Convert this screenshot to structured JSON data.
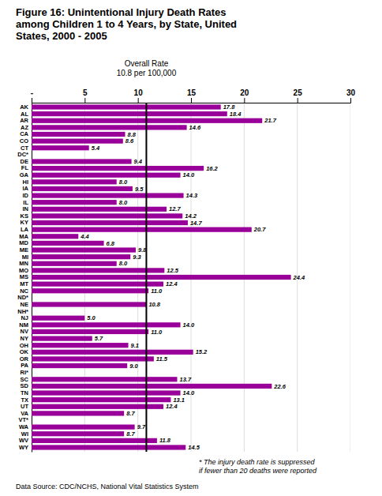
{
  "chart_data": {
    "type": "bar",
    "orientation": "horizontal",
    "title": "Figure 16: Unintentional Injury Death Rates\namong Children 1 to 4 Years, by State, United\nStates, 2000 - 2005",
    "categories": [
      "AK",
      "AL",
      "AR",
      "AZ",
      "CA",
      "CO",
      "CT",
      "DC*",
      "DE",
      "FL",
      "GA",
      "HI",
      "IA",
      "ID",
      "IL",
      "IN",
      "KS",
      "KY",
      "LA",
      "MA",
      "MD",
      "ME",
      "MI",
      "MN",
      "MO",
      "MS",
      "MT",
      "NC",
      "ND*",
      "NE",
      "NH*",
      "NJ",
      "NM",
      "NV",
      "NY",
      "OH",
      "OK",
      "OR",
      "PA",
      "RI*",
      "SC",
      "SD",
      "TN",
      "TX",
      "UT",
      "VA",
      "VT*",
      "WA",
      "WI",
      "WV",
      "WY"
    ],
    "values": [
      17.8,
      18.4,
      21.7,
      14.6,
      8.8,
      8.6,
      5.4,
      null,
      9.4,
      16.2,
      14.0,
      8.0,
      9.5,
      14.3,
      8.0,
      12.7,
      14.2,
      14.7,
      20.7,
      4.4,
      6.8,
      9.8,
      9.3,
      8.0,
      12.5,
      24.4,
      12.4,
      11.0,
      null,
      10.8,
      null,
      5.0,
      14.0,
      11.0,
      5.7,
      9.1,
      15.2,
      11.5,
      9.0,
      null,
      13.7,
      22.6,
      14.0,
      13.1,
      12.4,
      8.7,
      null,
      9.7,
      8.7,
      11.8,
      14.5
    ],
    "value_labels": [
      "17.8",
      "18.4",
      "21.7",
      "14.6",
      "8.8",
      "8.6",
      "5.4",
      null,
      "9.4",
      "16.2",
      "14.0",
      "8.0",
      "9.5",
      "14.3",
      "8.0",
      "12.7",
      "14.2",
      "14.7",
      "20.7",
      "4.4",
      "6.8",
      "9.8",
      "9.3",
      "8.0",
      "12.5",
      "24.4",
      "12.4",
      "11.0",
      null,
      "10.8",
      null,
      "5.0",
      "14.0",
      "11.0",
      "5.7",
      "9.1",
      "15.2",
      "11.5",
      "9.0",
      null,
      "13.7",
      "22.6",
      "14.0",
      "13.1",
      "12.4",
      "8.7",
      null,
      "9.7",
      "8.7",
      "11.8",
      "14.5"
    ],
    "data_labels": true,
    "color": "#990099",
    "xlim": [
      0,
      30
    ],
    "xticks": [
      {
        "value": 0,
        "label": "-"
      },
      5,
      10,
      15,
      20,
      25,
      30
    ],
    "grid": true,
    "annotations": [
      {
        "text": "Overall Rate\n10.8 per 100,000",
        "x": 10.8
      }
    ],
    "footnote": "* The injury death rate is suppressed\nif fewer than 20 deaths were reported",
    "source": "Data Source: CDC/NCHS, National Vital Statistics System"
  }
}
